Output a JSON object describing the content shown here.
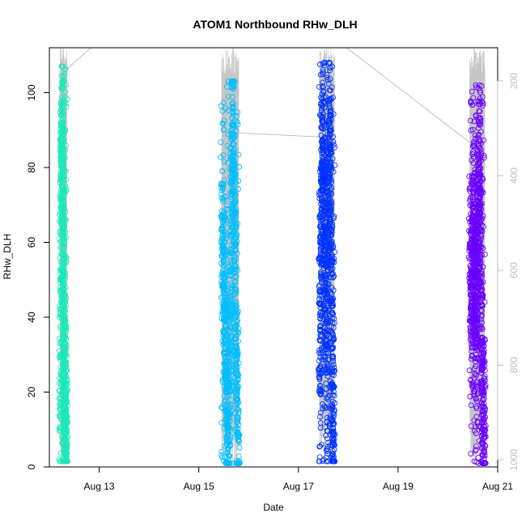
{
  "chart_data": {
    "type": "scatter",
    "title": "ATOM1 Northbound RHw_DLH",
    "xlabel": "Date",
    "ylabel": "RHw_DLH",
    "x_axis": {
      "type": "date",
      "range": [
        "Aug 12 00:00",
        "Aug 21 00:00"
      ],
      "ticks": [
        {
          "value": "Aug 13",
          "label": "Aug 13"
        },
        {
          "value": "Aug 15",
          "label": "Aug 15"
        },
        {
          "value": "Aug 17",
          "label": "Aug 17"
        },
        {
          "value": "Aug 19",
          "label": "Aug 19"
        },
        {
          "value": "Aug 21",
          "label": "Aug 21"
        }
      ]
    },
    "y_axis": {
      "range": [
        0,
        112
      ],
      "ticks": [
        0,
        20,
        40,
        60,
        80,
        100
      ]
    },
    "y2_axis": {
      "description": "secondary axis (altitude, grey, inverted)",
      "range": [
        1015,
        130
      ],
      "ticks": [
        200,
        400,
        600,
        800,
        1000
      ]
    },
    "grid": false,
    "series": [
      {
        "flight": 1,
        "color": "#1de9b6",
        "x_range": [
          "Aug 12 05:12",
          "Aug 12 08:24"
        ],
        "y_range": [
          1.5,
          107
        ],
        "profile": [
          [
            0.0,
            10
          ],
          [
            0.05,
            30
          ],
          [
            0.1,
            55
          ],
          [
            0.15,
            78
          ],
          [
            0.22,
            92
          ],
          [
            0.3,
            85
          ],
          [
            0.4,
            70
          ],
          [
            0.5,
            50
          ],
          [
            0.55,
            38
          ],
          [
            0.6,
            25
          ],
          [
            0.7,
            15
          ],
          [
            0.8,
            10
          ],
          [
            0.9,
            6
          ],
          [
            1.0,
            8
          ]
        ]
      },
      {
        "flight": 2,
        "color": "#00bfff",
        "x_range": [
          "Aug 15 11:02",
          "Aug 15 19:12"
        ],
        "y_range": [
          1,
          103
        ],
        "profile": [
          [
            0.0,
            65
          ],
          [
            0.1,
            55
          ],
          [
            0.2,
            35
          ],
          [
            0.3,
            15
          ],
          [
            0.4,
            10
          ],
          [
            0.5,
            40
          ],
          [
            0.6,
            75
          ],
          [
            0.7,
            90
          ],
          [
            0.8,
            60
          ],
          [
            0.9,
            20
          ],
          [
            1.0,
            5
          ]
        ]
      },
      {
        "flight": 3,
        "color": "#0033ff",
        "x_range": [
          "Aug 17 10:05",
          "Aug 17 17:17"
        ],
        "y_range": [
          1.5,
          108
        ],
        "profile": [
          [
            0.0,
            20
          ],
          [
            0.1,
            60
          ],
          [
            0.2,
            90
          ],
          [
            0.3,
            80
          ],
          [
            0.4,
            50
          ],
          [
            0.5,
            25
          ],
          [
            0.6,
            70
          ],
          [
            0.7,
            95
          ],
          [
            0.8,
            55
          ],
          [
            0.9,
            15
          ],
          [
            1.0,
            5
          ]
        ]
      },
      {
        "flight": 4,
        "color": "#6a00ff",
        "x_range": [
          "Aug 20 10:34",
          "Aug 20 17:46"
        ],
        "y_range": [
          1,
          102
        ],
        "profile": [
          [
            0.0,
            55
          ],
          [
            0.1,
            40
          ],
          [
            0.2,
            75
          ],
          [
            0.3,
            60
          ],
          [
            0.4,
            30
          ],
          [
            0.5,
            50
          ],
          [
            0.6,
            80
          ],
          [
            0.7,
            70
          ],
          [
            0.8,
            35
          ],
          [
            0.9,
            15
          ],
          [
            1.0,
            10
          ]
        ]
      }
    ],
    "altitude_trace": {
      "color": "#c0c0c0",
      "transit_points": [
        [
          "Aug 12 08:24",
          175
        ],
        [
          "Aug 13 00:00",
          115
        ],
        [
          "Aug 15 19:12",
          310
        ],
        [
          "Aug 17 10:05",
          318
        ],
        [
          "Aug 17 17:17",
          110
        ],
        [
          "Aug 20 10:34",
          330
        ]
      ]
    }
  }
}
